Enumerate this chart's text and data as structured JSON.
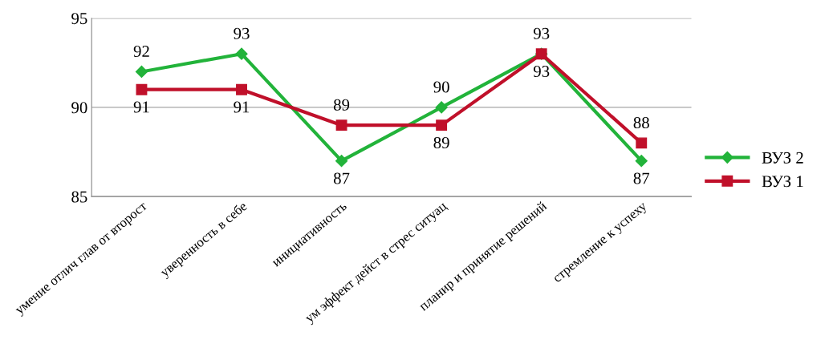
{
  "chart_data": {
    "type": "line",
    "categories": [
      "умение отлич глав от второст",
      "уверенность в себе",
      "инициативность",
      "ум эффект дейст в стрес ситуац",
      "планир и принятие решений",
      "стремление к успеху"
    ],
    "series": [
      {
        "name": "ВУЗ 2",
        "color": "#22b33a",
        "marker": "diamond",
        "values": [
          92,
          93,
          87,
          90,
          93,
          87
        ]
      },
      {
        "name": "ВУЗ 1",
        "color": "#c0102a",
        "marker": "square",
        "values": [
          91,
          91,
          89,
          89,
          93,
          88
        ]
      }
    ],
    "ylim": [
      85,
      95
    ],
    "yticks": [
      85,
      90,
      95
    ],
    "grid": "y",
    "legend": "right",
    "data_labels": true,
    "line_style": "solid"
  }
}
